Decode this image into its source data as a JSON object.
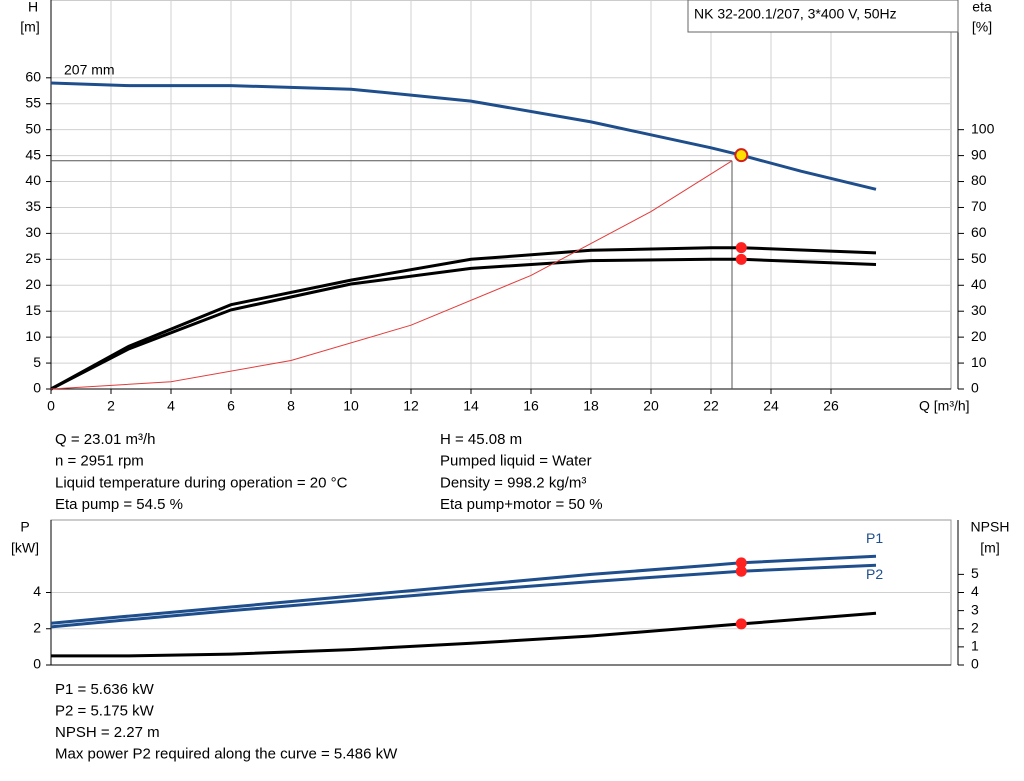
{
  "chart_data": [
    {
      "type": "line",
      "title": "NK 32-200.1/207, 3*400 V, 50Hz",
      "annotation": "207 mm",
      "ylabel": "H",
      "yunit": "[m]",
      "y2label": "eta",
      "y2unit": "[%]",
      "xlabel": "Q [m³/h]",
      "xlim": [
        0,
        30
      ],
      "ylim": [
        0,
        75
      ],
      "y2lim": [
        0,
        150
      ],
      "xticks": [
        0,
        2,
        4,
        6,
        8,
        10,
        12,
        14,
        16,
        18,
        20,
        22,
        24,
        26
      ],
      "yticks": [
        0,
        5,
        10,
        15,
        20,
        25,
        30,
        35,
        40,
        45,
        50,
        55,
        60
      ],
      "y2ticks": [
        0,
        10,
        20,
        30,
        40,
        50,
        60,
        70,
        80,
        90,
        100
      ],
      "grid": true,
      "series": [
        {
          "color": "#1f4e8c",
          "x": [
            0,
            2.6,
            6,
            10,
            14,
            18,
            22,
            23.01,
            25,
            27.5
          ],
          "values": [
            59,
            58.5,
            58.5,
            57.8,
            55.5,
            51.5,
            46.5,
            45.08,
            42,
            38.5
          ]
        },
        {
          "color": "#000000",
          "axis": "y2",
          "x": [
            0,
            2.6,
            6,
            10,
            14,
            18,
            22,
            23.01,
            27.5
          ],
          "values": [
            0,
            16.5,
            32.5,
            42,
            50,
            53.5,
            54.5,
            54.5,
            52.5
          ]
        },
        {
          "color": "#000000",
          "axis": "y2",
          "x": [
            0,
            2.6,
            6,
            10,
            14,
            18,
            22,
            23.01,
            27.5
          ],
          "values": [
            0,
            15.5,
            30.5,
            40.5,
            46.5,
            49.5,
            50,
            50,
            48
          ]
        },
        {
          "color": "#e33b3b",
          "x": [
            0,
            4,
            8,
            12,
            16,
            20,
            22.7
          ],
          "values": [
            0,
            1.4,
            5.5,
            12.3,
            21.9,
            34.2,
            44
          ]
        }
      ],
      "reference_point": {
        "x": 22.7,
        "y": 44
      },
      "points": [
        {
          "x": 23.01,
          "y": 45.08,
          "color": "#ffe000"
        },
        {
          "x": 23.01,
          "y": 54.5,
          "axis": "y2",
          "color": "#ff2020"
        },
        {
          "x": 23.01,
          "y": 50,
          "axis": "y2",
          "color": "#ff2020"
        }
      ]
    },
    {
      "type": "line",
      "ylabel": "P",
      "yunit": "[kW]",
      "y2label": "NPSH",
      "y2unit": "[m]",
      "xlim": [
        0,
        30
      ],
      "ylim": [
        0,
        8
      ],
      "y2lim": [
        0,
        8
      ],
      "yticks": [
        0,
        2,
        4
      ],
      "y2ticks": [
        0,
        1,
        2,
        3,
        4,
        5
      ],
      "grid": true,
      "series": [
        {
          "name": "P1",
          "color": "#1f4e8c",
          "x": [
            0,
            2.6,
            6,
            10,
            14,
            18,
            22,
            23.01,
            27.5
          ],
          "values": [
            2.3,
            2.7,
            3.2,
            3.8,
            4.4,
            5.0,
            5.5,
            5.636,
            6.0
          ]
        },
        {
          "name": "P2",
          "color": "#1f4e8c",
          "x": [
            0,
            2.6,
            6,
            10,
            14,
            18,
            23.01,
            27.5
          ],
          "values": [
            2.1,
            2.5,
            3.0,
            3.55,
            4.1,
            4.6,
            5.175,
            5.5
          ]
        },
        {
          "color": "#000000",
          "axis": "y2",
          "x": [
            0,
            2.6,
            6,
            10,
            14,
            18,
            23.01,
            27.5
          ],
          "values": [
            0.5,
            0.5,
            0.6,
            0.85,
            1.2,
            1.6,
            2.27,
            2.85
          ]
        }
      ],
      "points": [
        {
          "x": 23.01,
          "y": 5.636,
          "color": "#ff2020"
        },
        {
          "x": 23.01,
          "y": 5.175,
          "color": "#ff2020"
        },
        {
          "x": 23.01,
          "y": 2.27,
          "axis": "y2",
          "color": "#ff2020"
        }
      ]
    }
  ],
  "info_top": {
    "left": [
      "Q = 23.01 m³/h",
      "n = 2951 rpm",
      "Liquid temperature during operation = 20 °C",
      "Eta pump = 54.5 %"
    ],
    "right": [
      "H = 45.08 m",
      "Pumped liquid = Water",
      "Density = 998.2 kg/m³",
      "Eta pump+motor = 50 %"
    ]
  },
  "info_bottom": [
    "P1 = 5.636 kW",
    "P2 = 5.175 kW",
    "NPSH = 2.27 m",
    "Max power P2 required along the curve = 5.486 kW"
  ]
}
